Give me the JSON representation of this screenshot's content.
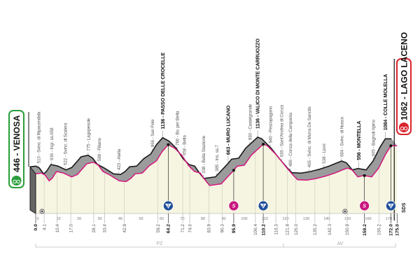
{
  "chart_data": {
    "type": "area",
    "title": "",
    "xlabel": "",
    "ylabel": "",
    "x_unit": "km",
    "y_unit": "m",
    "xlim": [
      0,
      175
    ],
    "x_ticks": [
      0,
      10,
      20,
      30,
      40,
      50,
      60,
      70,
      80,
      90,
      100,
      110,
      120,
      130,
      140,
      150,
      160,
      170
    ],
    "profile": [
      [
        0,
        605
      ],
      [
        2.8,
        618
      ],
      [
        4.5,
        583
      ],
      [
        6.5,
        475
      ],
      [
        7.9,
        518
      ],
      [
        10.1,
        648
      ],
      [
        13.5,
        618
      ],
      [
        17.4,
        548
      ],
      [
        20.2,
        592
      ],
      [
        24.7,
        790
      ],
      [
        28.1,
        820
      ],
      [
        30.3,
        764
      ],
      [
        32.6,
        648
      ],
      [
        35.9,
        583
      ],
      [
        40.4,
        475
      ],
      [
        43.8,
        462
      ],
      [
        46,
        518
      ],
      [
        48.2,
        605
      ],
      [
        51.6,
        618
      ],
      [
        55,
        755
      ],
      [
        58.4,
        842
      ],
      [
        61.2,
        1014
      ],
      [
        64.2,
        1144
      ],
      [
        67.3,
        1079
      ],
      [
        70.7,
        950
      ],
      [
        74.1,
        755
      ],
      [
        76.9,
        648
      ],
      [
        79.7,
        618
      ],
      [
        81.9,
        496
      ],
      [
        84.2,
        389
      ],
      [
        89.8,
        419
      ],
      [
        95.4,
        648
      ],
      [
        97.6,
        747
      ],
      [
        101,
        764
      ],
      [
        104.4,
        950
      ],
      [
        110.2,
        1153
      ],
      [
        112.2,
        1123
      ],
      [
        116.7,
        950
      ],
      [
        121.2,
        734
      ],
      [
        124.6,
        583
      ],
      [
        126.8,
        496
      ],
      [
        131.3,
        488
      ],
      [
        135.8,
        518
      ],
      [
        140.3,
        561
      ],
      [
        144.8,
        618
      ],
      [
        148.1,
        670
      ],
      [
        150.9,
        712
      ],
      [
        153.2,
        678
      ],
      [
        156,
        548
      ],
      [
        158.8,
        574
      ],
      [
        162.7,
        548
      ],
      [
        166.1,
        712
      ],
      [
        169.5,
        971
      ],
      [
        172,
        1123
      ],
      [
        175,
        1123
      ]
    ],
    "start": {
      "km": "0.0",
      "label": "446 - VENOSA",
      "color": "#2a9d3a"
    },
    "finish": {
      "km": "175.0",
      "label": "1062 - LAGO LACENO",
      "color": "#d8252e"
    },
    "waypoints": [
      {
        "km": 4.1,
        "km_label": "4.1",
        "elevation": "510",
        "name": "Svinc. di Ripacandida",
        "bold": false
      },
      {
        "km": 10.4,
        "km_label": "10.4",
        "elevation": "636",
        "name": "Ingr. ss.658",
        "bold": false
      },
      {
        "km": 17.0,
        "km_label": "17.0",
        "elevation": "522",
        "name": "Svinc. di Scalera",
        "bold": false
      },
      {
        "km": 28.1,
        "km_label": "28.1",
        "elevation": "775",
        "name": "Lagopesole",
        "bold": false
      },
      {
        "km": 33.4,
        "km_label": "33.4",
        "elevation": "588",
        "name": "Filiano",
        "bold": false
      },
      {
        "km": 42.9,
        "km_label": "42.9",
        "elevation": "423",
        "name": "Atella",
        "bold": false
      },
      {
        "km": 59.2,
        "km_label": "59.2",
        "elevation": "866",
        "name": "San Fele",
        "bold": false
      },
      {
        "km": 64.2,
        "km_label": "64.2",
        "elevation": "1136",
        "name": "PASSO DELLE CROCELLE",
        "bold": true
      },
      {
        "km": 71.2,
        "km_label": "71.2",
        "elevation": "786",
        "name": "Bv. per Bella",
        "bold": false
      },
      {
        "km": 74.6,
        "km_label": "74.6",
        "elevation": "658",
        "name": "Bella",
        "bold": false
      },
      {
        "km": 83.9,
        "km_label": "83.9",
        "elevation": "338",
        "name": "Bella Stazione",
        "bold": false
      },
      {
        "km": 90.3,
        "km_label": "90.3",
        "elevation": "385",
        "name": "Ins. ss.7",
        "bold": false
      },
      {
        "km": 95.9,
        "km_label": "95.9",
        "elevation": "663",
        "name": "MURO LUCANO",
        "bold": true
      },
      {
        "km": 106.4,
        "km_label": "106.4",
        "elevation": "930",
        "name": "Castelgrande",
        "bold": false
      },
      {
        "km": 110.2,
        "km_label": "110.2",
        "elevation": "1136",
        "name": "VALICO DI MONTE CARRUOZZO",
        "bold": true
      },
      {
        "km": 116.3,
        "km_label": "116.3",
        "elevation": "940",
        "name": "Pescopagano",
        "bold": false
      },
      {
        "km": 121.8,
        "km_label": "121.8",
        "elevation": "636",
        "name": "Sant'Andrea di Conza",
        "bold": false
      },
      {
        "km": 126.0,
        "km_label": "126.0",
        "elevation": "486",
        "name": "Conza della Campania",
        "bold": false
      },
      {
        "km": 135.2,
        "km_label": "135.2",
        "elevation": "465",
        "name": "Svinc. di Morra De Sanctis",
        "bold": false
      },
      {
        "km": 142.3,
        "km_label": "142.3",
        "elevation": "538",
        "name": "Lioni",
        "bold": false
      },
      {
        "km": 150.8,
        "km_label": "150.8",
        "elevation": "684",
        "name": "Svinc. di Nusco",
        "bold": false
      },
      {
        "km": 159.2,
        "km_label": "159.2",
        "elevation": "556",
        "name": "MONTELLA",
        "bold": true
      },
      {
        "km": 166.2,
        "km_label": "166.2",
        "elevation": "665",
        "name": "Bagnoli Irpino",
        "bold": false
      },
      {
        "km": 172.0,
        "km_label": "172.0",
        "elevation": "1084",
        "name": "COLLE MOLELLA",
        "bold": true
      }
    ],
    "climbs": [
      {
        "km": 64.2,
        "category": "2"
      },
      {
        "km": 110.2,
        "category": "2"
      },
      {
        "km": 172.0,
        "category": "2"
      }
    ],
    "sprints": [
      {
        "km": 95.9,
        "label": "S"
      },
      {
        "km": 159.2,
        "label": "S"
      }
    ],
    "feed_points": [
      4.1,
      150.8
    ],
    "regions": [
      {
        "label": "PZ",
        "from_km": 0,
        "to_km": 120
      },
      {
        "label": "AV",
        "from_km": 120,
        "to_km": 175
      }
    ],
    "sds_label": "SDS",
    "colors": {
      "profile_line": "#d4177f",
      "profile_top": "#9b9b9b",
      "profile_fill": "#f6f5e1",
      "climb_badge": "#1f4e9a",
      "sprint_badge": "#c8177e"
    }
  }
}
